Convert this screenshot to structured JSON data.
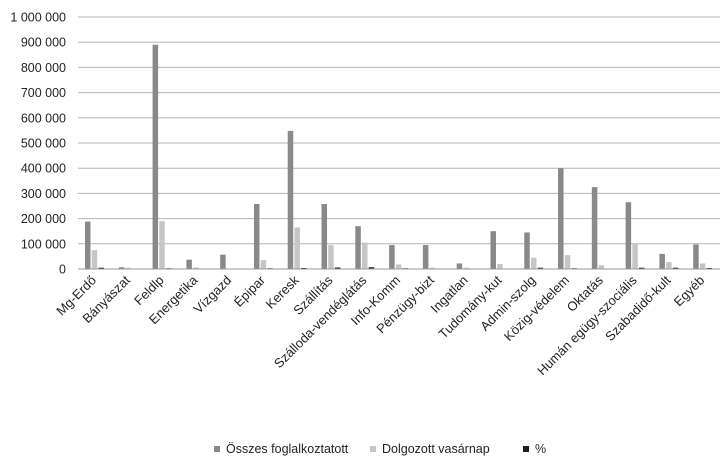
{
  "chart_data": {
    "type": "bar",
    "title": "",
    "xlabel": "",
    "ylabel": "",
    "ylim": [
      0,
      1000000
    ],
    "ytick_labels": [
      "0",
      "100 000",
      "200 000",
      "300 000",
      "400 000",
      "500 000",
      "600 000",
      "700 000",
      "800 000",
      "900 000",
      "1 000 000"
    ],
    "ytick_values": [
      0,
      100000,
      200000,
      300000,
      400000,
      500000,
      600000,
      700000,
      800000,
      900000,
      1000000
    ],
    "grid": true,
    "legend_position": "bottom",
    "categories": [
      "Mg-Erdő",
      "Bányászat",
      "Feldlp",
      "Energetika",
      "Vízgazd",
      "Épipar",
      "Keresk",
      "Szállítás",
      "Szálloda-vendéglátás",
      "Info-Komm",
      "Pénzügy-bizt",
      "Ingatlan",
      "Tudomány-kut",
      "Admin-szolg",
      "Közig-védelem",
      "Oktatás",
      "Humán egügy-szociális",
      "Szabadidő-kult",
      "Egyéb"
    ],
    "series": [
      {
        "name": "Összes foglalkoztatott",
        "color": "#898989",
        "values": [
          188000,
          7000,
          890000,
          37000,
          57000,
          258000,
          548000,
          258000,
          170000,
          95000,
          95000,
          22000,
          150000,
          145000,
          400000,
          325000,
          265000,
          60000,
          97000
        ]
      },
      {
        "name": "Dolgozott vasárnap",
        "color": "#c6c6c6",
        "values": [
          75000,
          5000,
          190000,
          6000,
          2000,
          35000,
          165000,
          95000,
          105000,
          18000,
          5000,
          5000,
          20000,
          45000,
          55000,
          15000,
          100000,
          28000,
          22000
        ]
      },
      {
        "name": "%",
        "color": "#1f1f1f",
        "values": [
          5000,
          1000,
          3000,
          1000,
          1000,
          3000,
          4000,
          6000,
          7000,
          3000,
          1000,
          1000,
          2000,
          5000,
          3000,
          1000,
          5000,
          5000,
          4000
        ]
      }
    ]
  }
}
